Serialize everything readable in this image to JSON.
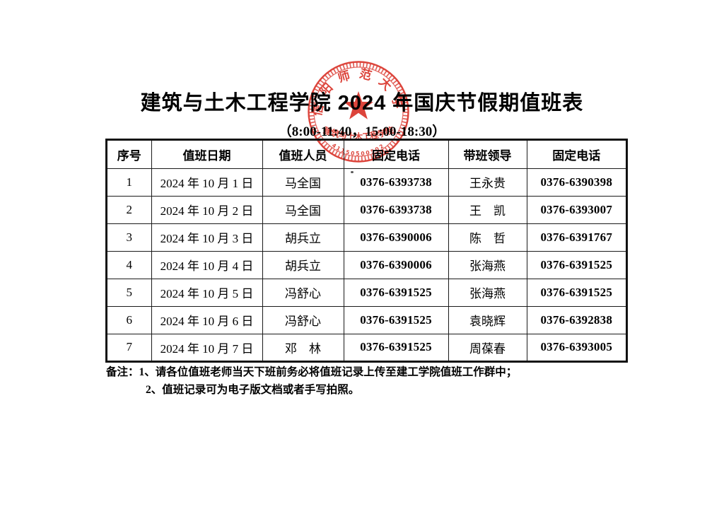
{
  "title": "建筑与土木工程学院 2024 年国庆节假期值班表",
  "subtitle": "（8:00-11:40，15:00-18:30）",
  "stamp": {
    "arc_text": "信阳师范大学",
    "department_text": "建筑与土木工程学院",
    "serial_number": "41150500502",
    "color": "#d9342a",
    "star_icon": "red-star"
  },
  "table": {
    "headers": [
      "序号",
      "值班日期",
      "值班人员",
      "固定电话",
      "带班领导",
      "固定电话"
    ],
    "rows": [
      [
        "1",
        "2024 年 10 月 1 日",
        "马全国",
        "0376-6393738",
        "王永贵",
        "0376-6390398"
      ],
      [
        "2",
        "2024 年 10 月 2 日",
        "马全国",
        "0376-6393738",
        "王　凯",
        "0376-6393007"
      ],
      [
        "3",
        "2024 年 10 月 3 日",
        "胡兵立",
        "0376-6390006",
        "陈　哲",
        "0376-6391767"
      ],
      [
        "4",
        "2024 年 10 月 4 日",
        "胡兵立",
        "0376-6390006",
        "张海燕",
        "0376-6391525"
      ],
      [
        "5",
        "2024 年 10 月 5 日",
        "冯舒心",
        "0376-6391525",
        "张海燕",
        "0376-6391525"
      ],
      [
        "6",
        "2024 年 10 月 6 日",
        "冯舒心",
        "0376-6391525",
        "袁晓辉",
        "0376-6392838"
      ],
      [
        "7",
        "2024 年 10 月 7 日",
        "邓　林",
        "0376-6391525",
        "周葆春",
        "0376-6393005"
      ]
    ],
    "phone_column_indices": [
      3,
      5
    ]
  },
  "notes": {
    "line1": "备注：1、请各位值班老师当天下班前务必将值班记录上传至建工学院值班工作群中；",
    "line2": "2、值班记录可为电子版文档或者手写拍照。"
  }
}
